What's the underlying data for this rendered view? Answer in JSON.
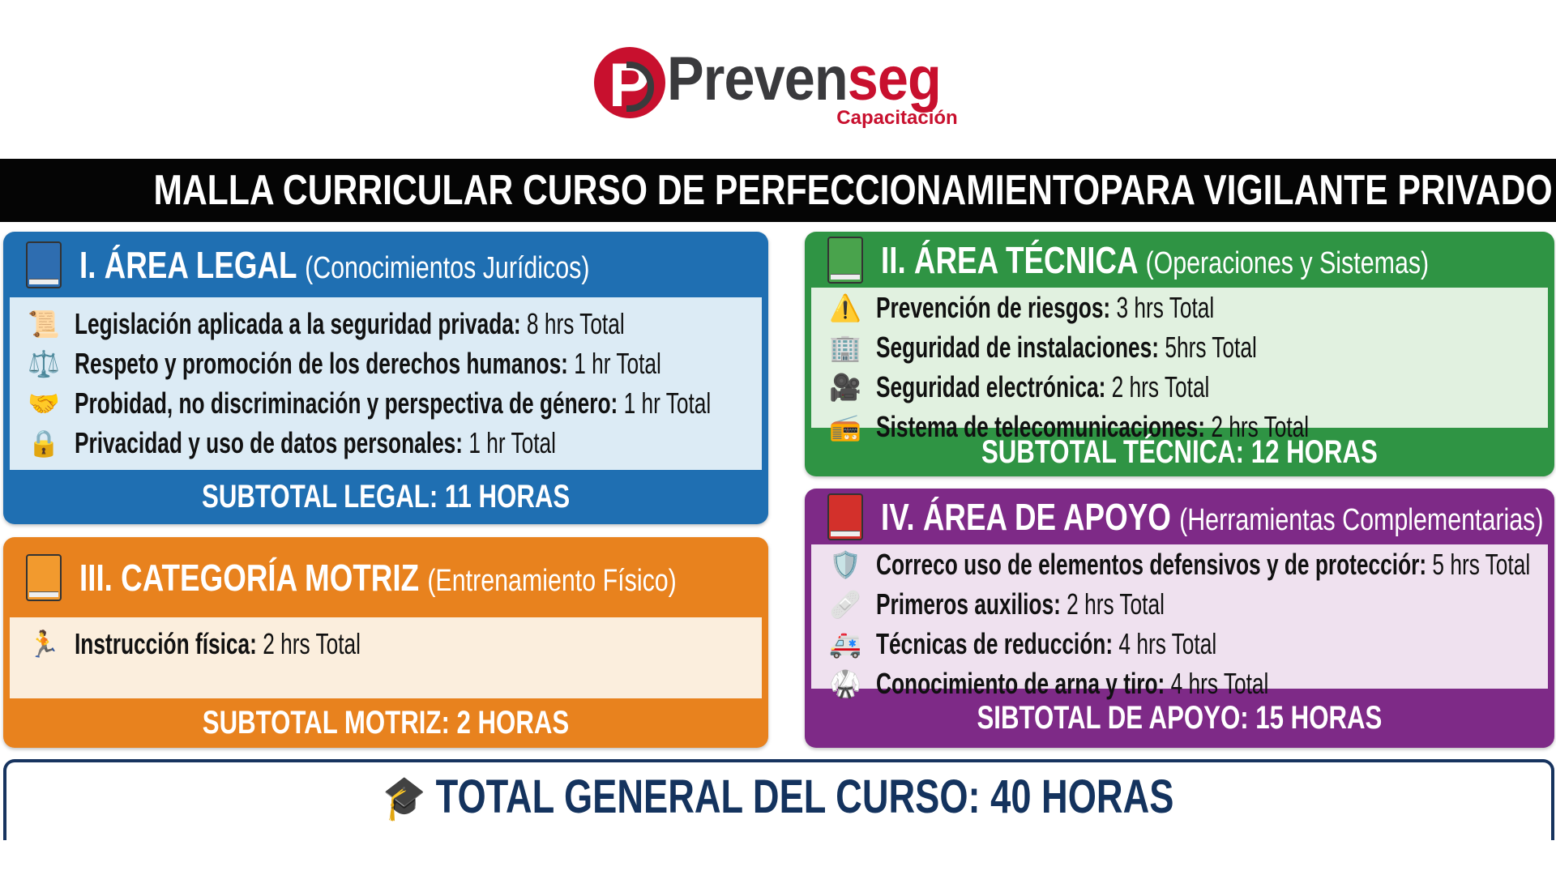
{
  "logo": {
    "brand_part1": "Preven",
    "brand_part2": "seg",
    "tagline": "Capacitación",
    "colors": {
      "red": "#c8102e",
      "dark": "#3a3a3d"
    }
  },
  "banner": {
    "title": "MALLA CURRICULAR CURSO DE PERFECCIONAMIENTOPARA VIGILANTE PRIVADO"
  },
  "sections": {
    "legal": {
      "title": "I. ÁREA LEGAL",
      "subtitle": "(Conocimientos Jurídicos)",
      "color": "#1f6fb2",
      "icon": "blue-book-icon",
      "items": [
        {
          "icon": "scroll-icon",
          "label": "Legislación aplicada a la seguridad privada:",
          "value": "8 hrs Total"
        },
        {
          "icon": "scales-icon",
          "label": "Respeto y promoción de los derechos humanos:",
          "value": "1 hr Total"
        },
        {
          "icon": "handshake-icon",
          "label": "Probidad, no discriminación y perspectiva de género:",
          "value": "1 hr Total"
        },
        {
          "icon": "lock-icon",
          "label": "Privacidad y uso de datos personales:",
          "value": "1 hr Total"
        }
      ],
      "subtotal": "SUBTOTAL LEGAL: 11 HORAS"
    },
    "tecnica": {
      "title": "II. ÁREA TÉCNICA",
      "subtitle": "(Operaciones y Sistemas)",
      "color": "#2f9444",
      "icon": "green-book-icon",
      "items": [
        {
          "icon": "warning-icon",
          "label": "Prevención de riesgos:",
          "value": "3 hrs Total"
        },
        {
          "icon": "building-icon",
          "label": "Seguridad de instalaciones:",
          "value": "5hrs Total"
        },
        {
          "icon": "video-camera-icon",
          "label": "Seguridad electrónica:",
          "value": "2 hrs Total"
        },
        {
          "icon": "radio-icon",
          "label": "Sistema de telecomunicaciones:",
          "value": "2 hrs Total"
        }
      ],
      "subtotal": "SUBTOTAL TÉCNICA: 12 HORAS"
    },
    "motriz": {
      "title": "III. CATEGORÍA MOTRIZ",
      "subtitle": "(Entrenamiento Físico)",
      "color": "#e8821e",
      "icon": "orange-book-icon",
      "items": [
        {
          "icon": "running-person-icon",
          "label": "Instrucción física:",
          "value": "2 hrs Total"
        }
      ],
      "subtotal": "SUBTOTAL MOTRIZ: 2 HORAS"
    },
    "apoyo": {
      "title": "IV. ÁREA DE APOYO",
      "subtitle": "(Herramientas Complementarias)",
      "color": "#7e2a87",
      "icon": "red-book-icon",
      "items": [
        {
          "icon": "shield-icon",
          "label": "Correco uso de elementos defensivos y de protecciór:",
          "value": "5 hrs Total"
        },
        {
          "icon": "first-aid-kit-icon",
          "label": "Primeros auxilios:",
          "value": "2 hrs Total"
        },
        {
          "icon": "ambulance-icon",
          "label": "Técnicas de reducción:",
          "value": "4 hrs Total"
        },
        {
          "icon": "martial-arts-gi-icon",
          "label": "Conocimiento de arna y tiro:",
          "value": "4 hrs Total"
        }
      ],
      "subtotal": "SIBTOTAL DE APOYO: 15 HORAS"
    }
  },
  "total": {
    "label": "TOTAL GENERAL DEL CURSO: 40 HORAS",
    "icon": "graduation-cap-icon",
    "color": "#14335e"
  }
}
